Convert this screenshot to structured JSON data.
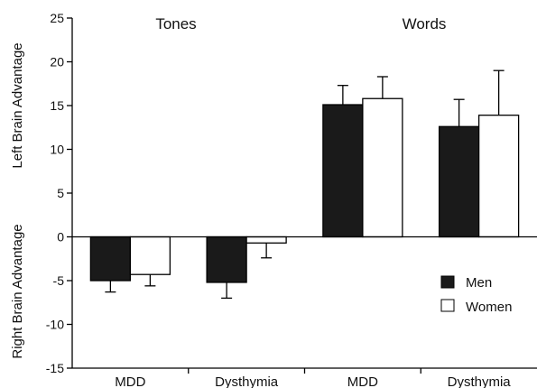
{
  "chart_data": {
    "type": "bar",
    "title": "",
    "xlabel": "",
    "ylabel_top": "Left Brain Advantage",
    "ylabel_bottom": "Right Brain Advantage",
    "ylim": [
      -15,
      25
    ],
    "yticks": [
      25,
      20,
      15,
      10,
      5,
      0,
      -5,
      -10,
      -15
    ],
    "ytick_labels": [
      "25",
      "20",
      "15",
      "10",
      "5",
      "0",
      "-5",
      "-10",
      "-15"
    ],
    "groups": [
      "Tones",
      "Words"
    ],
    "categories": [
      "MDD",
      "Dysthymia",
      "MDD",
      "Dysthymia"
    ],
    "series": [
      {
        "name": "Men",
        "color": "#1a1a1a",
        "values": [
          -5.0,
          -5.2,
          15.1,
          12.6
        ],
        "errors": [
          1.3,
          1.8,
          2.2,
          3.1
        ]
      },
      {
        "name": "Women",
        "color": "#ffffff",
        "values": [
          -4.3,
          -0.7,
          15.8,
          13.9
        ],
        "errors": [
          1.3,
          1.7,
          2.5,
          5.1
        ]
      }
    ],
    "legend_position": "right",
    "grid": false
  }
}
